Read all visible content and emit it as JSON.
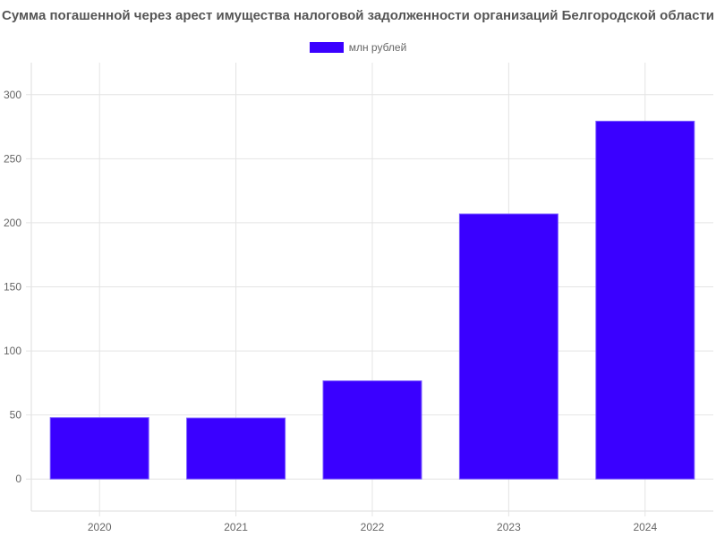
{
  "chart_data": {
    "type": "bar",
    "title": "Сумма погашенной через арест имущества налоговой задолженности организаций Белгородской области",
    "categories": [
      "2020",
      "2021",
      "2022",
      "2023",
      "2024"
    ],
    "series": [
      {
        "name": "млн рублей",
        "values": [
          47.9,
          47.6,
          76.6,
          206.9,
          279.3
        ],
        "color": "#3a00ff"
      }
    ],
    "xlabel": "",
    "ylabel": "",
    "ylim": [
      -25,
      325
    ],
    "yticks": [
      0,
      50,
      100,
      150,
      200,
      250,
      300
    ],
    "grid": true,
    "legend": "top-center"
  }
}
